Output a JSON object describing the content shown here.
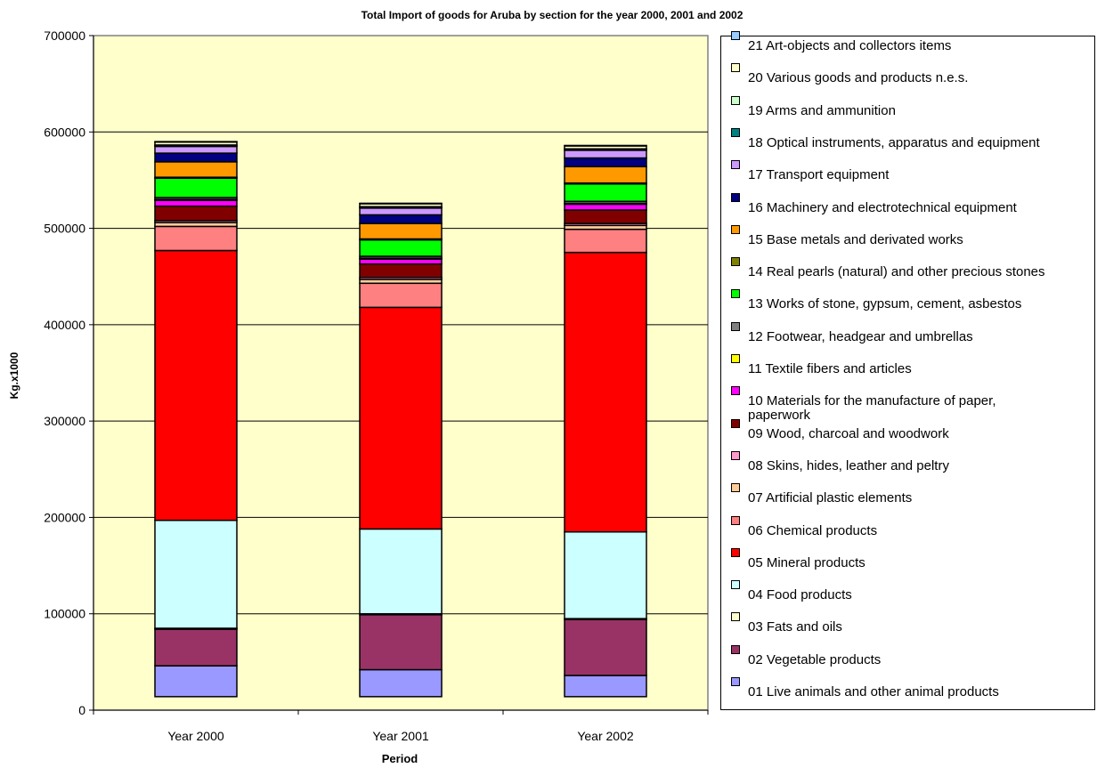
{
  "chart_data": {
    "type": "bar",
    "stacked": true,
    "title": "Total Import of goods for Aruba by section for the year 2000, 2001 and 2002",
    "xlabel": "Period",
    "ylabel": "Kg.x1000",
    "ylim": [
      0,
      700000
    ],
    "yticks": [
      "0",
      "100000",
      "200000",
      "300000",
      "400000",
      "500000",
      "600000",
      "700000"
    ],
    "categories": [
      "Year 2000",
      "Year 2001",
      "Year 2002"
    ],
    "grid": true,
    "legend_position": "right",
    "series": [
      {
        "name": "01 Live animals and other animal products",
        "color": "#9999ff",
        "values": [
          32000,
          28000,
          22000
        ]
      },
      {
        "name": "02 Vegetable products",
        "color": "#993366",
        "values": [
          38000,
          57000,
          58000
        ]
      },
      {
        "name": "03 Fats and oils",
        "color": "#ffffcc",
        "values": [
          1000,
          1000,
          1000
        ]
      },
      {
        "name": "04 Food products",
        "color": "#ccffff",
        "values": [
          112000,
          88000,
          90000
        ]
      },
      {
        "name": "05 Mineral products",
        "color": "#ff0000",
        "values": [
          280000,
          230000,
          290000
        ]
      },
      {
        "name": "06 Chemical products",
        "color": "#ff8080",
        "values": [
          25000,
          25000,
          24000
        ]
      },
      {
        "name": "07 Artificial plastic elements",
        "color": "#ffcc99",
        "values": [
          4000,
          4000,
          4000
        ]
      },
      {
        "name": "08 Skins, hides, leather and peltry",
        "color": "#ff99cc",
        "values": [
          2000,
          2000,
          2000
        ]
      },
      {
        "name": "09 Wood, charcoal and woodwork",
        "color": "#800000",
        "values": [
          15000,
          14000,
          14000
        ]
      },
      {
        "name": "10 Materials for the manufacture of paper, paperwork",
        "color": "#ff00ff",
        "values": [
          6000,
          5000,
          6000
        ]
      },
      {
        "name": "11 Textile fibers and articles",
        "color": "#ffff00",
        "values": [
          1000,
          1000,
          1000
        ]
      },
      {
        "name": "12 Footwear, headgear and umbrellas",
        "color": "#808080",
        "values": [
          2000,
          2000,
          2000
        ]
      },
      {
        "name": "13 Works of stone, gypsum, cement, asbestos",
        "color": "#00ff00",
        "values": [
          20000,
          17000,
          18000
        ]
      },
      {
        "name": "14 Real pearls (natural) and other precious stones",
        "color": "#808000",
        "values": [
          1000,
          1000,
          1000
        ]
      },
      {
        "name": "15 Base metals and derivated works",
        "color": "#ff9900",
        "values": [
          16000,
          16000,
          17000
        ]
      },
      {
        "name": "16 Machinery and electrotechnical equipment",
        "color": "#000080",
        "values": [
          9000,
          9000,
          9000
        ]
      },
      {
        "name": "17 Transport equipment",
        "color": "#cc99ff",
        "values": [
          7000,
          7000,
          8000
        ]
      },
      {
        "name": "18 Optical instruments, apparatus and equipment",
        "color": "#008080",
        "values": [
          1000,
          1000,
          1000
        ]
      },
      {
        "name": "19 Arms and ammunition",
        "color": "#ccffcc",
        "values": [
          500,
          500,
          500
        ]
      },
      {
        "name": "20 Various goods and products n.e.s.",
        "color": "#ffffcc",
        "values": [
          3000,
          3000,
          3000
        ]
      },
      {
        "name": "21 Art-objects and collectors items",
        "color": "#99ccff",
        "values": [
          500,
          500,
          500
        ]
      }
    ]
  }
}
